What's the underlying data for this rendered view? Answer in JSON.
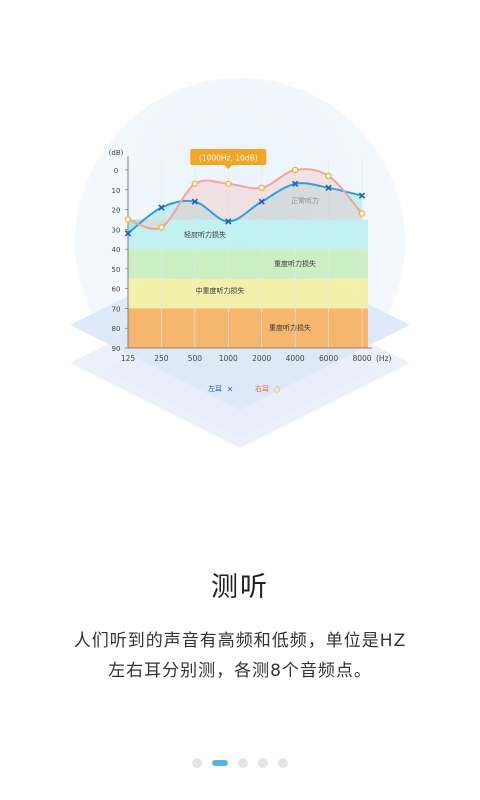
{
  "page": {
    "title": "测听",
    "description_line1": "人们听到的声音有高频和低频，单位是HZ",
    "description_line2": "左右耳分别测，各测8个音频点。",
    "pager": {
      "total": 5,
      "active_index": 1
    }
  },
  "chart_data": {
    "type": "line",
    "unit_y": "(dB)",
    "unit_x": "(Hz)",
    "x_categories": [
      "125",
      "250",
      "500",
      "1000",
      "2000",
      "4000",
      "6000",
      "8000"
    ],
    "y_ticks": [
      0,
      10,
      20,
      30,
      40,
      50,
      60,
      70,
      80,
      90
    ],
    "ylim": [
      0,
      90
    ],
    "y_inverted": true,
    "tooltip": "(1000Hz, 10dB)",
    "bands": [
      {
        "label": "正常听力",
        "from": 0,
        "to": 25,
        "color": "#ffffff"
      },
      {
        "label": "轻度听力损失",
        "from": 25,
        "to": 40,
        "color": "#bff0f0"
      },
      {
        "label": "重度听力损失",
        "from": 40,
        "to": 55,
        "color": "#c9efc0"
      },
      {
        "label": "中重度听力损失",
        "from": 55,
        "to": 70,
        "color": "#f2f0a5"
      },
      {
        "label": "重度听力损失",
        "from": 70,
        "to": 90,
        "color": "#f8b366"
      }
    ],
    "band_labels_order_note": "",
    "series": [
      {
        "name": "左耳",
        "marker": "x",
        "color": "#1a5fc8",
        "x": [
          "125",
          "250",
          "500",
          "1000",
          "2000",
          "4000",
          "6000",
          "8000"
        ],
        "y": [
          32,
          19,
          16,
          26,
          16,
          7,
          9,
          13
        ]
      },
      {
        "name": "右耳",
        "marker": "o",
        "color": "#f3a59a",
        "x": [
          "125",
          "250",
          "500",
          "1000",
          "2000",
          "4000",
          "6000",
          "8000"
        ],
        "y": [
          25,
          29,
          7,
          7,
          9,
          0,
          3,
          22
        ]
      }
    ],
    "legend": {
      "position": "bottom",
      "items": [
        {
          "label": "左耳",
          "marker": "×"
        },
        {
          "label": "右耳",
          "marker": "○"
        }
      ]
    }
  }
}
